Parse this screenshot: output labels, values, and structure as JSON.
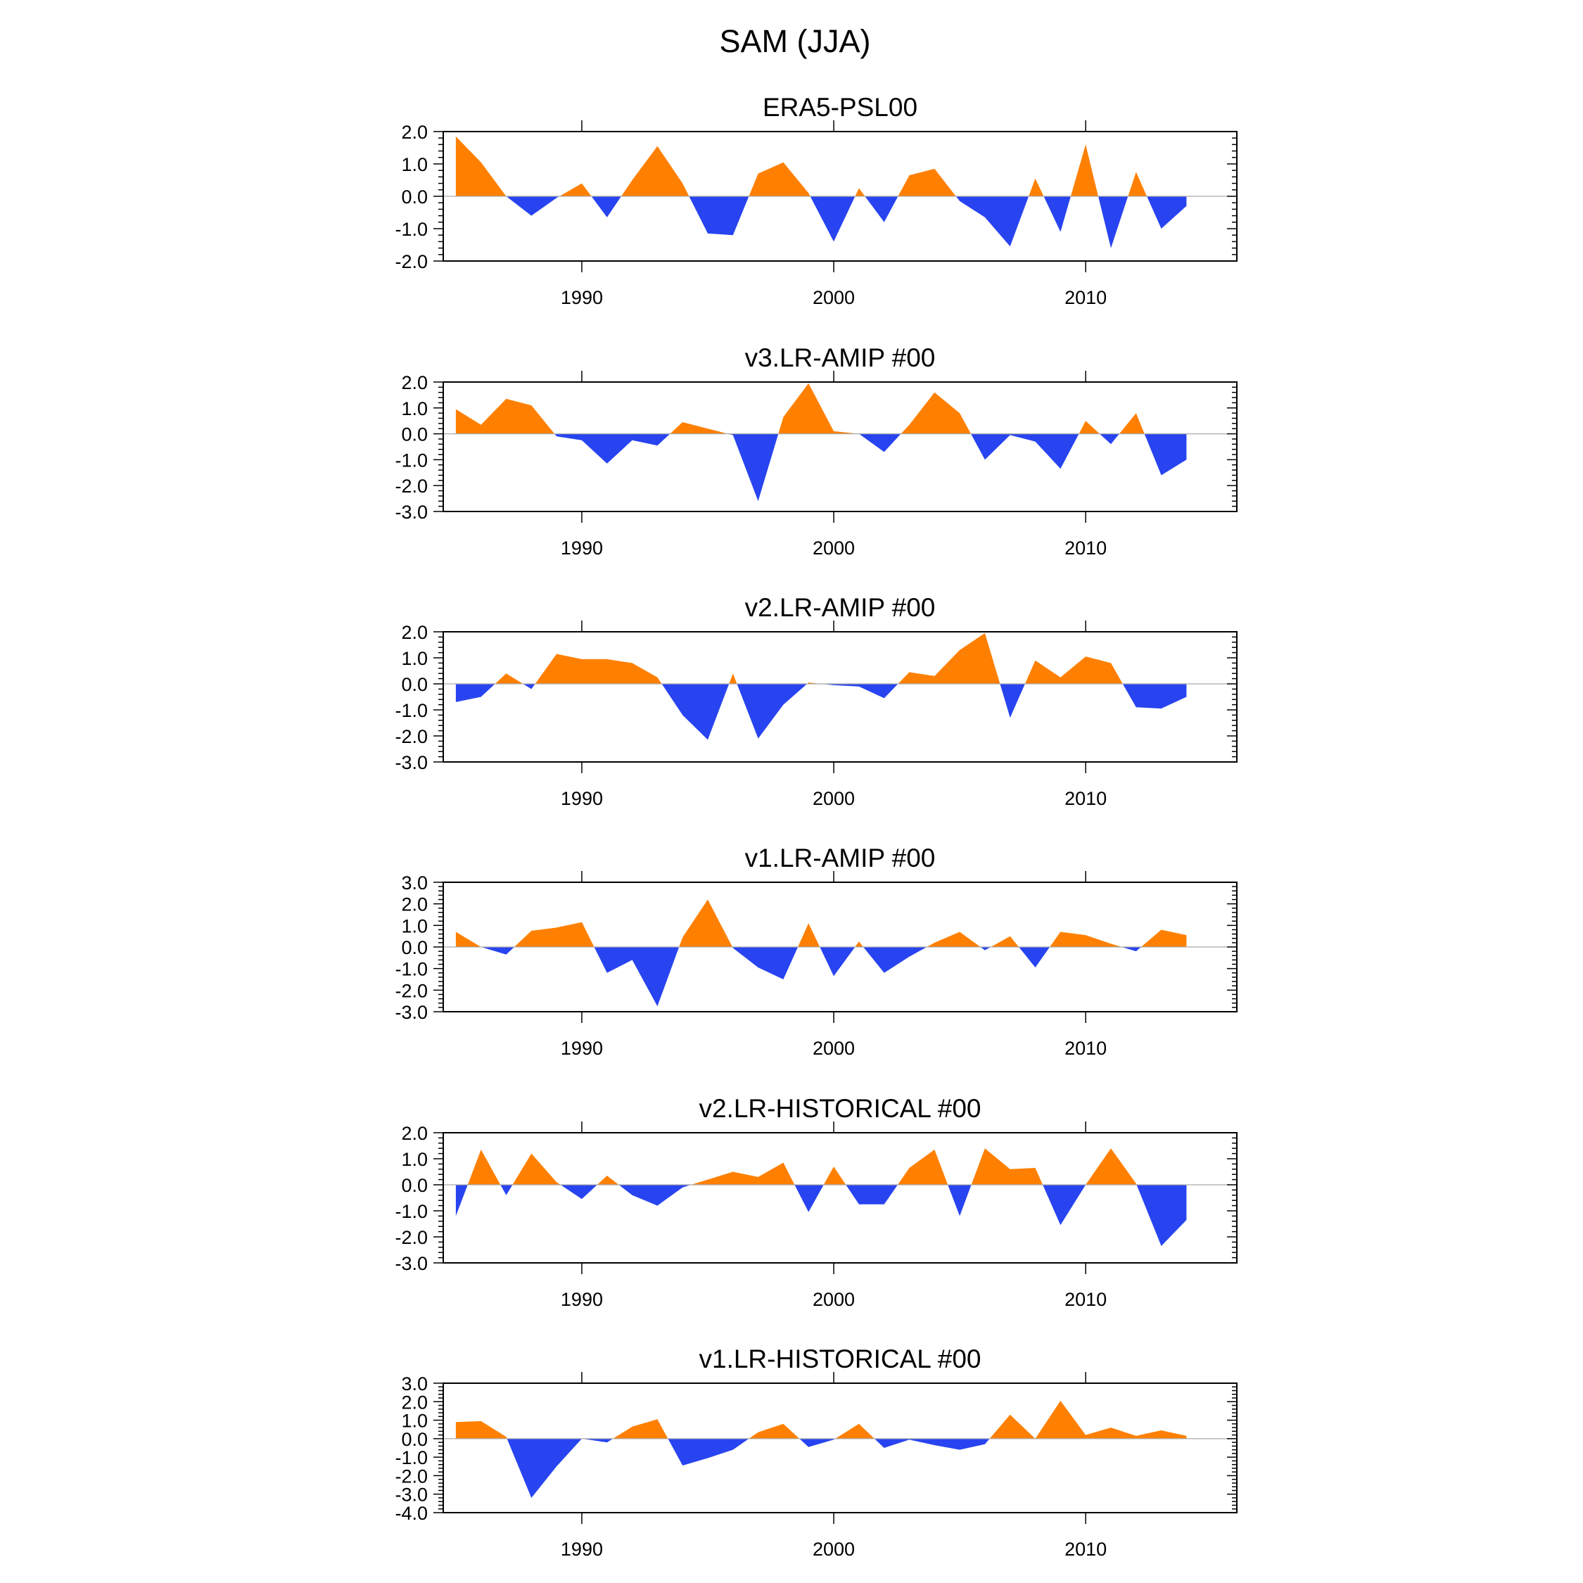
{
  "figure": {
    "title": "SAM (JJA)"
  },
  "colors": {
    "positive": "#ff8000",
    "negative": "#2844f0",
    "axis": "#000000",
    "zero_line": "#aaaaaa"
  },
  "chart_data": [
    {
      "type": "area",
      "title": "ERA5-PSL00",
      "xlabel": "",
      "ylabel": "",
      "xlim": [
        1984.5,
        2016.0
      ],
      "ylim": [
        -2.0,
        2.0
      ],
      "yticks": [
        "2.0",
        "1.0",
        "0.0",
        "-1.0",
        "-2.0"
      ],
      "xticks": [
        "1990",
        "2000",
        "2010"
      ],
      "grid": false,
      "x": [
        1985,
        1986,
        1987,
        1988,
        1989,
        1990,
        1991,
        1992,
        1993,
        1994,
        1995,
        1996,
        1997,
        1998,
        1999,
        2000,
        2001,
        2002,
        2003,
        2004,
        2005,
        2006,
        2007,
        2008,
        2009,
        2010,
        2011,
        2012,
        2013,
        2014
      ],
      "values": [
        1.85,
        1.05,
        0.0,
        -0.6,
        -0.05,
        0.4,
        -0.65,
        0.5,
        1.55,
        0.4,
        -1.15,
        -1.2,
        0.7,
        1.05,
        0.1,
        -1.4,
        0.25,
        -0.8,
        0.65,
        0.85,
        -0.15,
        -0.65,
        -1.55,
        0.55,
        -1.1,
        1.6,
        -1.6,
        0.75,
        -1.0,
        -0.3
      ]
    },
    {
      "type": "area",
      "title": "v3.LR-AMIP  #00",
      "xlabel": "",
      "ylabel": "",
      "xlim": [
        1984.5,
        2016.0
      ],
      "ylim": [
        -3.0,
        2.0
      ],
      "yticks": [
        "2.0",
        "1.0",
        "0.0",
        "-1.0",
        "-2.0",
        "-3.0"
      ],
      "xticks": [
        "1990",
        "2000",
        "2010"
      ],
      "grid": false,
      "x": [
        1985,
        1986,
        1987,
        1988,
        1989,
        1990,
        1991,
        1992,
        1993,
        1994,
        1995,
        1996,
        1997,
        1998,
        1999,
        2000,
        2001,
        2002,
        2003,
        2004,
        2005,
        2006,
        2007,
        2008,
        2009,
        2010,
        2011,
        2012,
        2013,
        2014
      ],
      "values": [
        0.95,
        0.35,
        1.35,
        1.1,
        -0.1,
        -0.25,
        -1.15,
        -0.25,
        -0.45,
        0.45,
        0.2,
        -0.05,
        -2.6,
        0.65,
        1.95,
        0.1,
        0.0,
        -0.7,
        0.35,
        1.6,
        0.8,
        -1.0,
        -0.05,
        -0.3,
        -1.35,
        0.5,
        -0.4,
        0.8,
        -1.6,
        -1.0
      ]
    },
    {
      "type": "area",
      "title": "v2.LR-AMIP  #00",
      "xlabel": "",
      "ylabel": "",
      "xlim": [
        1984.5,
        2016.0
      ],
      "ylim": [
        -3.0,
        2.0
      ],
      "yticks": [
        "2.0",
        "1.0",
        "0.0",
        "-1.0",
        "-2.0",
        "-3.0"
      ],
      "xticks": [
        "1990",
        "2000",
        "2010"
      ],
      "grid": false,
      "x": [
        1985,
        1986,
        1987,
        1988,
        1989,
        1990,
        1991,
        1992,
        1993,
        1994,
        1995,
        1996,
        1997,
        1998,
        1999,
        2000,
        2001,
        2002,
        2003,
        2004,
        2005,
        2006,
        2007,
        2008,
        2009,
        2010,
        2011,
        2012,
        2013,
        2014
      ],
      "values": [
        -0.7,
        -0.5,
        0.4,
        -0.2,
        1.15,
        0.95,
        0.95,
        0.8,
        0.25,
        -1.2,
        -2.15,
        0.4,
        -2.1,
        -0.8,
        0.05,
        -0.05,
        -0.1,
        -0.55,
        0.45,
        0.3,
        1.3,
        1.95,
        -1.3,
        0.9,
        0.25,
        1.05,
        0.8,
        -0.9,
        -0.95,
        -0.5
      ]
    },
    {
      "type": "area",
      "title": "v1.LR-AMIP  #00",
      "xlabel": "",
      "ylabel": "",
      "xlim": [
        1984.5,
        2016.0
      ],
      "ylim": [
        -3.0,
        3.0
      ],
      "yticks": [
        "3.0",
        "2.0",
        "1.0",
        "0.0",
        "-1.0",
        "-2.0",
        "-3.0"
      ],
      "xticks": [
        "1990",
        "2000",
        "2010"
      ],
      "grid": false,
      "x": [
        1985,
        1986,
        1987,
        1988,
        1989,
        1990,
        1991,
        1992,
        1993,
        1994,
        1995,
        1996,
        1997,
        1998,
        1999,
        2000,
        2001,
        2002,
        2003,
        2004,
        2005,
        2006,
        2007,
        2008,
        2009,
        2010,
        2011,
        2012,
        2013,
        2014
      ],
      "values": [
        0.7,
        0.0,
        -0.35,
        0.75,
        0.9,
        1.15,
        -1.2,
        -0.6,
        -2.75,
        0.45,
        2.2,
        -0.05,
        -0.95,
        -1.5,
        1.1,
        -1.35,
        0.25,
        -1.2,
        -0.45,
        0.2,
        0.7,
        -0.15,
        0.5,
        -0.95,
        0.7,
        0.55,
        0.15,
        -0.2,
        0.8,
        0.55
      ]
    },
    {
      "type": "area",
      "title": "v2.LR-HISTORICAL  #00",
      "xlabel": "",
      "ylabel": "",
      "xlim": [
        1984.5,
        2016.0
      ],
      "ylim": [
        -3.0,
        2.0
      ],
      "yticks": [
        "2.0",
        "1.0",
        "0.0",
        "-1.0",
        "-2.0",
        "-3.0"
      ],
      "xticks": [
        "1990",
        "2000",
        "2010"
      ],
      "grid": false,
      "x": [
        1985,
        1986,
        1987,
        1988,
        1989,
        1990,
        1991,
        1992,
        1993,
        1994,
        1995,
        1996,
        1997,
        1998,
        1999,
        2000,
        2001,
        2002,
        2003,
        2004,
        2005,
        2006,
        2007,
        2008,
        2009,
        2010,
        2011,
        2012,
        2013,
        2014
      ],
      "values": [
        -1.2,
        1.35,
        -0.4,
        1.2,
        0.1,
        -0.55,
        0.35,
        -0.4,
        -0.8,
        -0.1,
        0.2,
        0.5,
        0.3,
        0.85,
        -1.05,
        0.7,
        -0.75,
        -0.75,
        0.65,
        1.35,
        -1.2,
        1.4,
        0.6,
        0.65,
        -1.55,
        0.0,
        1.4,
        0.05,
        -2.35,
        -1.35
      ]
    },
    {
      "type": "area",
      "title": "v1.LR-HISTORICAL  #00",
      "xlabel": "",
      "ylabel": "",
      "xlim": [
        1984.5,
        2016.0
      ],
      "ylim": [
        -4.0,
        3.0
      ],
      "yticks": [
        "3.0",
        "2.0",
        "1.0",
        "0.0",
        "-1.0",
        "-2.0",
        "-3.0",
        "-4.0"
      ],
      "xticks": [
        "1990",
        "2000",
        "2010"
      ],
      "grid": false,
      "x": [
        1985,
        1986,
        1987,
        1988,
        1989,
        1990,
        1991,
        1992,
        1993,
        1994,
        1995,
        1996,
        1997,
        1998,
        1999,
        2000,
        2001,
        2002,
        2003,
        2004,
        2005,
        2006,
        2007,
        2008,
        2009,
        2010,
        2011,
        2012,
        2013,
        2014
      ],
      "values": [
        0.9,
        0.95,
        0.1,
        -3.2,
        -1.5,
        0.0,
        -0.2,
        0.65,
        1.05,
        -1.45,
        -1.05,
        -0.6,
        0.35,
        0.8,
        -0.45,
        -0.05,
        0.8,
        -0.5,
        -0.05,
        -0.35,
        -0.6,
        -0.3,
        1.3,
        0.0,
        2.05,
        0.2,
        0.6,
        0.15,
        0.45,
        0.15
      ]
    }
  ]
}
